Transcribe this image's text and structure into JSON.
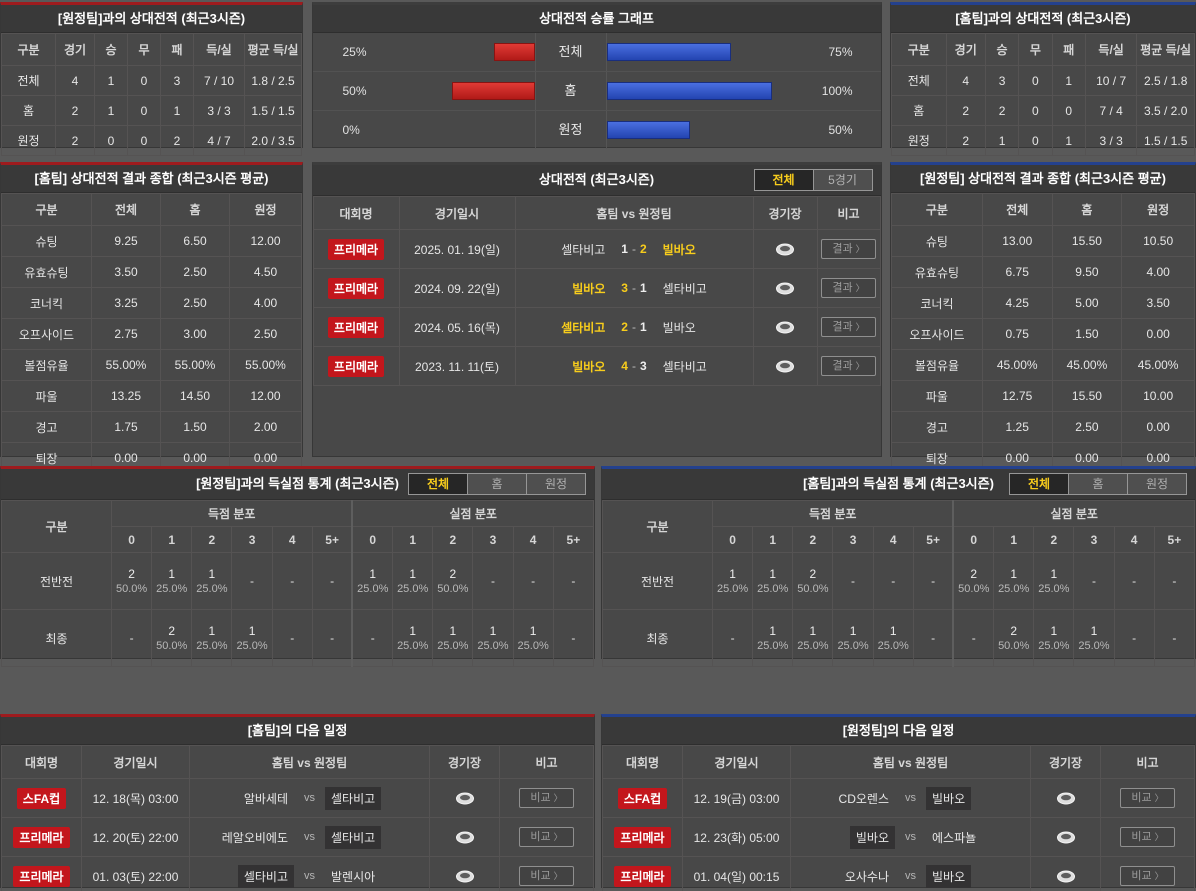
{
  "colors": {
    "accent_red": "#9e1b1e",
    "accent_blue": "#24418e",
    "badge_red": "#c3161c",
    "bar_red": "#b01a18",
    "bar_red_hi": "#e03a35",
    "bar_blue": "#2344b0",
    "bar_blue_hi": "#4a6fe0",
    "yellow": "#f8cd1c"
  },
  "h2h_away": {
    "title": "[원정팀]과의 상대전적 (최근3시즌)",
    "headers": [
      "구분",
      "경기",
      "승",
      "무",
      "패",
      "득/실",
      "평균 득/실"
    ],
    "rows": [
      [
        "전체",
        "4",
        "1",
        "0",
        "3",
        "7 / 10",
        "1.8 / 2.5"
      ],
      [
        "홈",
        "2",
        "1",
        "0",
        "1",
        "3 / 3",
        "1.5 / 1.5"
      ],
      [
        "원정",
        "2",
        "0",
        "0",
        "2",
        "4 / 7",
        "2.0 / 3.5"
      ]
    ]
  },
  "winrate_chart": {
    "title": "상대전적 승률 그래프",
    "rows": [
      {
        "label": "전체",
        "left_pct": 25,
        "left_label": "25%",
        "right_pct": 75,
        "right_label": "75%"
      },
      {
        "label": "홈",
        "left_pct": 50,
        "left_label": "50%",
        "right_pct": 100,
        "right_label": "100%"
      },
      {
        "label": "원정",
        "left_pct": 0,
        "left_label": "0%",
        "right_pct": 50,
        "right_label": "50%"
      }
    ]
  },
  "chart_data": {
    "type": "bar",
    "title": "상대전적 승률 그래프",
    "categories": [
      "전체",
      "홈",
      "원정"
    ],
    "series": [
      {
        "name": "left-red-winrate",
        "values": [
          25,
          50,
          0
        ]
      },
      {
        "name": "right-blue-winrate",
        "values": [
          75,
          100,
          50
        ]
      }
    ],
    "unit": "%",
    "xlim": [
      0,
      100
    ],
    "orientation": "horizontal-diverging",
    "grid": false,
    "legend": "none"
  },
  "h2h_home": {
    "title": "[홈팀]과의 상대전적 (최근3시즌)",
    "headers": [
      "구분",
      "경기",
      "승",
      "무",
      "패",
      "득/실",
      "평균 득/실"
    ],
    "rows": [
      [
        "전체",
        "4",
        "3",
        "0",
        "1",
        "10 / 7",
        "2.5 / 1.8"
      ],
      [
        "홈",
        "2",
        "2",
        "0",
        "0",
        "7 / 4",
        "3.5 / 2.0"
      ],
      [
        "원정",
        "2",
        "1",
        "0",
        "1",
        "3 / 3",
        "1.5 / 1.5"
      ]
    ]
  },
  "summary_home": {
    "title": "[홈팀] 상대전적 결과 종합 (최근3시즌 평균)",
    "headers": [
      "구분",
      "전체",
      "홈",
      "원정"
    ],
    "rows": [
      [
        "슈팅",
        "9.25",
        "6.50",
        "12.00"
      ],
      [
        "유효슈팅",
        "3.50",
        "2.50",
        "4.50"
      ],
      [
        "코너킥",
        "3.25",
        "2.50",
        "4.00"
      ],
      [
        "오프사이드",
        "2.75",
        "3.00",
        "2.50"
      ],
      [
        "볼점유율",
        "55.00%",
        "55.00%",
        "55.00%"
      ],
      [
        "파울",
        "13.25",
        "14.50",
        "12.00"
      ],
      [
        "경고",
        "1.75",
        "1.50",
        "2.00"
      ],
      [
        "퇴장",
        "0.00",
        "0.00",
        "0.00"
      ]
    ]
  },
  "summary_away": {
    "title": "[원정팀] 상대전적 결과 종합 (최근3시즌 평균)",
    "headers": [
      "구분",
      "전체",
      "홈",
      "원정"
    ],
    "rows": [
      [
        "슈팅",
        "13.00",
        "15.50",
        "10.50"
      ],
      [
        "유효슈팅",
        "6.75",
        "9.50",
        "4.00"
      ],
      [
        "코너킥",
        "4.25",
        "5.00",
        "3.50"
      ],
      [
        "오프사이드",
        "0.75",
        "1.50",
        "0.00"
      ],
      [
        "볼점유율",
        "45.00%",
        "45.00%",
        "45.00%"
      ],
      [
        "파울",
        "12.75",
        "15.50",
        "10.00"
      ],
      [
        "경고",
        "1.25",
        "2.50",
        "0.00"
      ],
      [
        "퇴장",
        "0.00",
        "0.00",
        "0.00"
      ]
    ]
  },
  "matches": {
    "title": "상대전적 (최근3시즌)",
    "tabs": [
      {
        "label": "전체",
        "active": true
      },
      {
        "label": "5경기",
        "active": false
      }
    ],
    "headers": [
      "대회명",
      "경기일시",
      "홈팀  vs  원정팀",
      "경기장",
      "비고"
    ],
    "button_label": "결과",
    "rows": [
      {
        "league": "프리메라",
        "date": "2025. 01. 19(일)",
        "home": "셀타비고",
        "home_score": "1",
        "away_score": "2",
        "away": "빌바오",
        "winner": "away"
      },
      {
        "league": "프리메라",
        "date": "2024. 09. 22(일)",
        "home": "빌바오",
        "home_score": "3",
        "away_score": "1",
        "away": "셀타비고",
        "winner": "home"
      },
      {
        "league": "프리메라",
        "date": "2024. 05. 16(목)",
        "home": "셀타비고",
        "home_score": "2",
        "away_score": "1",
        "away": "빌바오",
        "winner": "home"
      },
      {
        "league": "프리메라",
        "date": "2023. 11. 11(토)",
        "home": "빌바오",
        "home_score": "4",
        "away_score": "3",
        "away": "셀타비고",
        "winner": "home"
      }
    ]
  },
  "goals_away": {
    "title": "[원정팀]과의 득실점 통계 (최근3시즌)",
    "tabs": [
      {
        "label": "전체",
        "active": true
      },
      {
        "label": "홈",
        "active": false
      },
      {
        "label": "원정",
        "active": false
      }
    ],
    "col_label": "구분",
    "group_scored": "득점 분포",
    "group_conceded": "실점 분포",
    "bins": [
      "0",
      "1",
      "2",
      "3",
      "4",
      "5+"
    ],
    "rows": [
      {
        "label": "전반전",
        "scored": [
          [
            "2",
            "50.0%"
          ],
          [
            "1",
            "25.0%"
          ],
          [
            "1",
            "25.0%"
          ],
          "-",
          "-",
          "-"
        ],
        "conceded": [
          [
            "1",
            "25.0%"
          ],
          [
            "1",
            "25.0%"
          ],
          [
            "2",
            "50.0%"
          ],
          "-",
          "-",
          "-"
        ]
      },
      {
        "label": "최종",
        "scored": [
          "-",
          [
            "2",
            "50.0%"
          ],
          [
            "1",
            "25.0%"
          ],
          [
            "1",
            "25.0%"
          ],
          "-",
          "-"
        ],
        "conceded": [
          "-",
          [
            "1",
            "25.0%"
          ],
          [
            "1",
            "25.0%"
          ],
          [
            "1",
            "25.0%"
          ],
          [
            "1",
            "25.0%"
          ],
          "-"
        ]
      }
    ]
  },
  "goals_home": {
    "title": "[홈팀]과의 득실점 통계 (최근3시즌)",
    "tabs": [
      {
        "label": "전체",
        "active": true
      },
      {
        "label": "홈",
        "active": false
      },
      {
        "label": "원정",
        "active": false
      }
    ],
    "col_label": "구분",
    "group_scored": "득점 분포",
    "group_conceded": "실점 분포",
    "bins": [
      "0",
      "1",
      "2",
      "3",
      "4",
      "5+"
    ],
    "rows": [
      {
        "label": "전반전",
        "scored": [
          [
            "1",
            "25.0%"
          ],
          [
            "1",
            "25.0%"
          ],
          [
            "2",
            "50.0%"
          ],
          "-",
          "-",
          "-"
        ],
        "conceded": [
          [
            "2",
            "50.0%"
          ],
          [
            "1",
            "25.0%"
          ],
          [
            "1",
            "25.0%"
          ],
          "-",
          "-",
          "-"
        ]
      },
      {
        "label": "최종",
        "scored": [
          "-",
          [
            "1",
            "25.0%"
          ],
          [
            "1",
            "25.0%"
          ],
          [
            "1",
            "25.0%"
          ],
          [
            "1",
            "25.0%"
          ],
          "-"
        ],
        "conceded": [
          "-",
          [
            "2",
            "50.0%"
          ],
          [
            "1",
            "25.0%"
          ],
          [
            "1",
            "25.0%"
          ],
          "-",
          "-"
        ]
      }
    ]
  },
  "schedule_home": {
    "title": "[홈팀]의 다음 일정",
    "headers": [
      "대회명",
      "경기일시",
      "홈팀  vs  원정팀",
      "경기장",
      "비고"
    ],
    "button_label": "비교",
    "rows": [
      {
        "league": "스FA컵",
        "date": "12. 18(목) 03:00",
        "home": "알바세테",
        "away": "셀타비고",
        "highlight": "away"
      },
      {
        "league": "프리메라",
        "date": "12. 20(토) 22:00",
        "home": "레알오비에도",
        "away": "셀타비고",
        "highlight": "away"
      },
      {
        "league": "프리메라",
        "date": "01. 03(토) 22:00",
        "home": "셀타비고",
        "away": "발렌시아",
        "highlight": "home"
      }
    ]
  },
  "schedule_away": {
    "title": "[원정팀]의 다음 일정",
    "headers": [
      "대회명",
      "경기일시",
      "홈팀  vs  원정팀",
      "경기장",
      "비고"
    ],
    "button_label": "비교",
    "rows": [
      {
        "league": "스FA컵",
        "date": "12. 19(금) 03:00",
        "home": "CD오렌스",
        "away": "빌바오",
        "highlight": "away"
      },
      {
        "league": "프리메라",
        "date": "12. 23(화) 05:00",
        "home": "빌바오",
        "away": "에스파뇰",
        "highlight": "home"
      },
      {
        "league": "프리메라",
        "date": "01. 04(일) 00:15",
        "home": "오사수나",
        "away": "빌바오",
        "highlight": "away"
      }
    ]
  }
}
